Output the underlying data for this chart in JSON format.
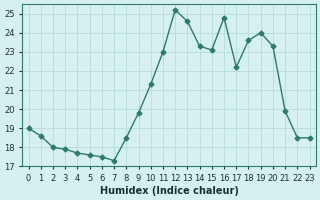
{
  "x": [
    0,
    1,
    2,
    3,
    4,
    5,
    6,
    7,
    8,
    9,
    10,
    11,
    12,
    13,
    14,
    15,
    16,
    17,
    18,
    19,
    20,
    21,
    22,
    23
  ],
  "y": [
    19.0,
    18.6,
    18.0,
    17.9,
    17.7,
    17.6,
    17.5,
    17.3,
    18.5,
    19.8,
    21.3,
    23.0,
    25.2,
    24.6,
    23.3,
    23.1,
    24.8,
    22.2,
    23.6,
    24.0,
    23.3,
    19.9,
    18.5,
    18.5
  ],
  "xlabel": "Humidex (Indice chaleur)",
  "line_color": "#2d7a6e",
  "bg_color": "#d6f0f0",
  "grid_color": "#b8dede",
  "ylim": [
    17,
    25.5
  ],
  "yticks": [
    17,
    18,
    19,
    20,
    21,
    22,
    23,
    24,
    25
  ],
  "xticks": [
    0,
    1,
    2,
    3,
    4,
    5,
    6,
    7,
    8,
    9,
    10,
    11,
    12,
    13,
    14,
    15,
    16,
    17,
    18,
    19,
    20,
    21,
    22,
    23
  ]
}
